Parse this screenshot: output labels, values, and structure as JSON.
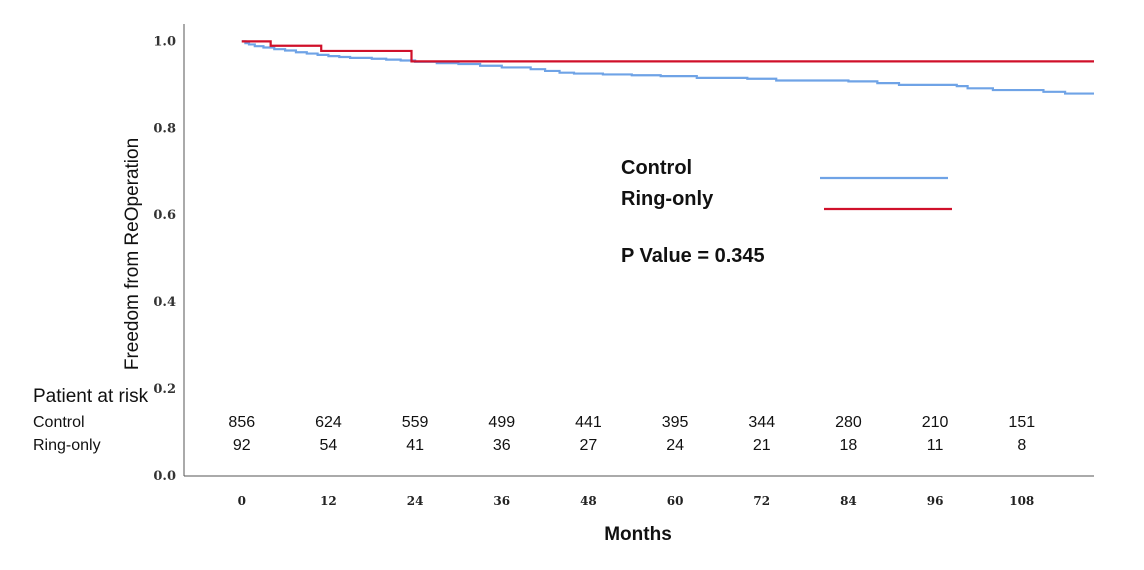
{
  "chart_data": {
    "type": "line",
    "xlabel": "Months",
    "ylabel": "Freedom from ReOperation",
    "xlim": [
      -8,
      118
    ],
    "ylim": [
      0,
      1.04
    ],
    "x_ticks": [
      0,
      12,
      24,
      36,
      48,
      60,
      72,
      84,
      96,
      108
    ],
    "y_ticks": [
      0.0,
      0.2,
      0.4,
      0.6,
      0.8,
      1.0
    ],
    "y_tick_labels": [
      "0.0",
      "0.2",
      "0.4",
      "0.6",
      "0.8",
      "1.0"
    ],
    "grid": false,
    "series": [
      {
        "name": "Control",
        "color": "#6fa3e6",
        "step": true,
        "points": [
          [
            0,
            1.0
          ],
          [
            0.5,
            0.996
          ],
          [
            1,
            0.993
          ],
          [
            1.8,
            0.989
          ],
          [
            3,
            0.986
          ],
          [
            4.5,
            0.982
          ],
          [
            6,
            0.979
          ],
          [
            7.5,
            0.975
          ],
          [
            9,
            0.972
          ],
          [
            10.5,
            0.969
          ],
          [
            12,
            0.966
          ],
          [
            13.5,
            0.964
          ],
          [
            15,
            0.962
          ],
          [
            18,
            0.96
          ],
          [
            20,
            0.958
          ],
          [
            22,
            0.956
          ],
          [
            24,
            0.953
          ],
          [
            27,
            0.95
          ],
          [
            30,
            0.948
          ],
          [
            33,
            0.944
          ],
          [
            36,
            0.94
          ],
          [
            40,
            0.936
          ],
          [
            42,
            0.932
          ],
          [
            44,
            0.928
          ],
          [
            46,
            0.926
          ],
          [
            50,
            0.924
          ],
          [
            54,
            0.922
          ],
          [
            58,
            0.92
          ],
          [
            63,
            0.916
          ],
          [
            70,
            0.914
          ],
          [
            74,
            0.91
          ],
          [
            84,
            0.908
          ],
          [
            88,
            0.904
          ],
          [
            91,
            0.9
          ],
          [
            99,
            0.897
          ],
          [
            100.5,
            0.892
          ],
          [
            104,
            0.888
          ],
          [
            111,
            0.884
          ],
          [
            114,
            0.88
          ],
          [
            119,
            0.88
          ]
        ]
      },
      {
        "name": "Ring-only",
        "color": "#d0102a",
        "step": true,
        "points": [
          [
            0,
            1.0
          ],
          [
            4,
            0.99
          ],
          [
            11,
            0.978
          ],
          [
            23.5,
            0.954
          ],
          [
            119,
            0.954
          ]
        ]
      }
    ],
    "legend": {
      "placement": "center-right",
      "entries": [
        {
          "label": "Control",
          "color": "#6fa3e6"
        },
        {
          "label": "Ring-only",
          "color": "#d0102a"
        }
      ]
    },
    "annotations": [
      "P Value = 0.345"
    ],
    "risk_table": {
      "title": "Patient at risk",
      "rows": [
        {
          "label": "Control",
          "values": [
            "856",
            "624",
            "559",
            "499",
            "441",
            "395",
            "344",
            "280",
            "210",
            "151"
          ]
        },
        {
          "label": "Ring-only",
          "values": [
            "92",
            "54",
            "41",
            "36",
            "27",
            "24",
            "21",
            "18",
            "11",
            "8"
          ]
        }
      ]
    }
  }
}
